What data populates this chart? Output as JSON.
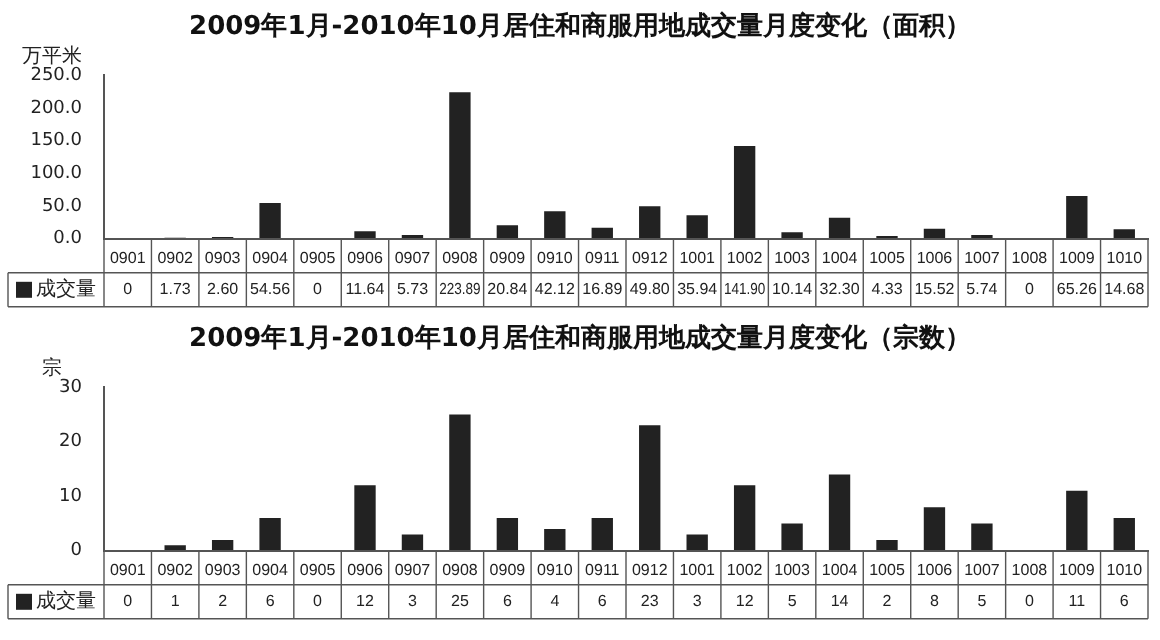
{
  "chart_data": [
    {
      "type": "bar",
      "title": "2009年1月-2010年10月居住和商服用地成交量月度变化（面积）",
      "ylabel": "万平米",
      "categories": [
        "0901",
        "0902",
        "0903",
        "0904",
        "0905",
        "0906",
        "0907",
        "0908",
        "0909",
        "0910",
        "0911",
        "0912",
        "1001",
        "1002",
        "1003",
        "1004",
        "1005",
        "1006",
        "1007",
        "1008",
        "1009",
        "1010"
      ],
      "series": [
        {
          "name": "成交量",
          "color": "#222222",
          "values": [
            0,
            1.73,
            2.6,
            54.56,
            0,
            11.64,
            5.73,
            223.89,
            20.84,
            42.12,
            16.89,
            49.8,
            35.94,
            141.9,
            10.14,
            32.3,
            4.33,
            15.52,
            5.74,
            0,
            65.26,
            14.68
          ],
          "value_labels": [
            "0",
            "1.73",
            "2.60",
            "54.56",
            "0",
            "11.64",
            "5.73",
            "223.89",
            "20.84",
            "42.12",
            "16.89",
            "49.80",
            "35.94",
            "141.90",
            "10.14",
            "32.30",
            "4.33",
            "15.52",
            "5.74",
            "0",
            "65.26",
            "14.68"
          ]
        }
      ],
      "ylim": [
        0,
        250
      ],
      "yticks": [
        {
          "value": 0,
          "label": "0.0"
        },
        {
          "value": 50,
          "label": "50.0"
        },
        {
          "value": 100,
          "label": "100.0"
        },
        {
          "value": 150,
          "label": "150.0"
        },
        {
          "value": 200,
          "label": "200.0"
        },
        {
          "value": 250,
          "label": "250.0"
        }
      ],
      "grid": false
    },
    {
      "type": "bar",
      "title": "2009年1月-2010年10月居住和商服用地成交量月度变化（宗数）",
      "ylabel": "宗",
      "categories": [
        "0901",
        "0902",
        "0903",
        "0904",
        "0905",
        "0906",
        "0907",
        "0908",
        "0909",
        "0910",
        "0911",
        "0912",
        "1001",
        "1002",
        "1003",
        "1004",
        "1005",
        "1006",
        "1007",
        "1008",
        "1009",
        "1010"
      ],
      "series": [
        {
          "name": "成交量",
          "color": "#222222",
          "values": [
            0,
            1,
            2,
            6,
            0,
            12,
            3,
            25,
            6,
            4,
            6,
            23,
            3,
            12,
            5,
            14,
            2,
            8,
            5,
            0,
            11,
            6
          ]
        }
      ],
      "data_labels": true,
      "ylim": [
        0,
        30
      ],
      "yticks": [
        0,
        10,
        20,
        30
      ],
      "grid": false
    }
  ]
}
